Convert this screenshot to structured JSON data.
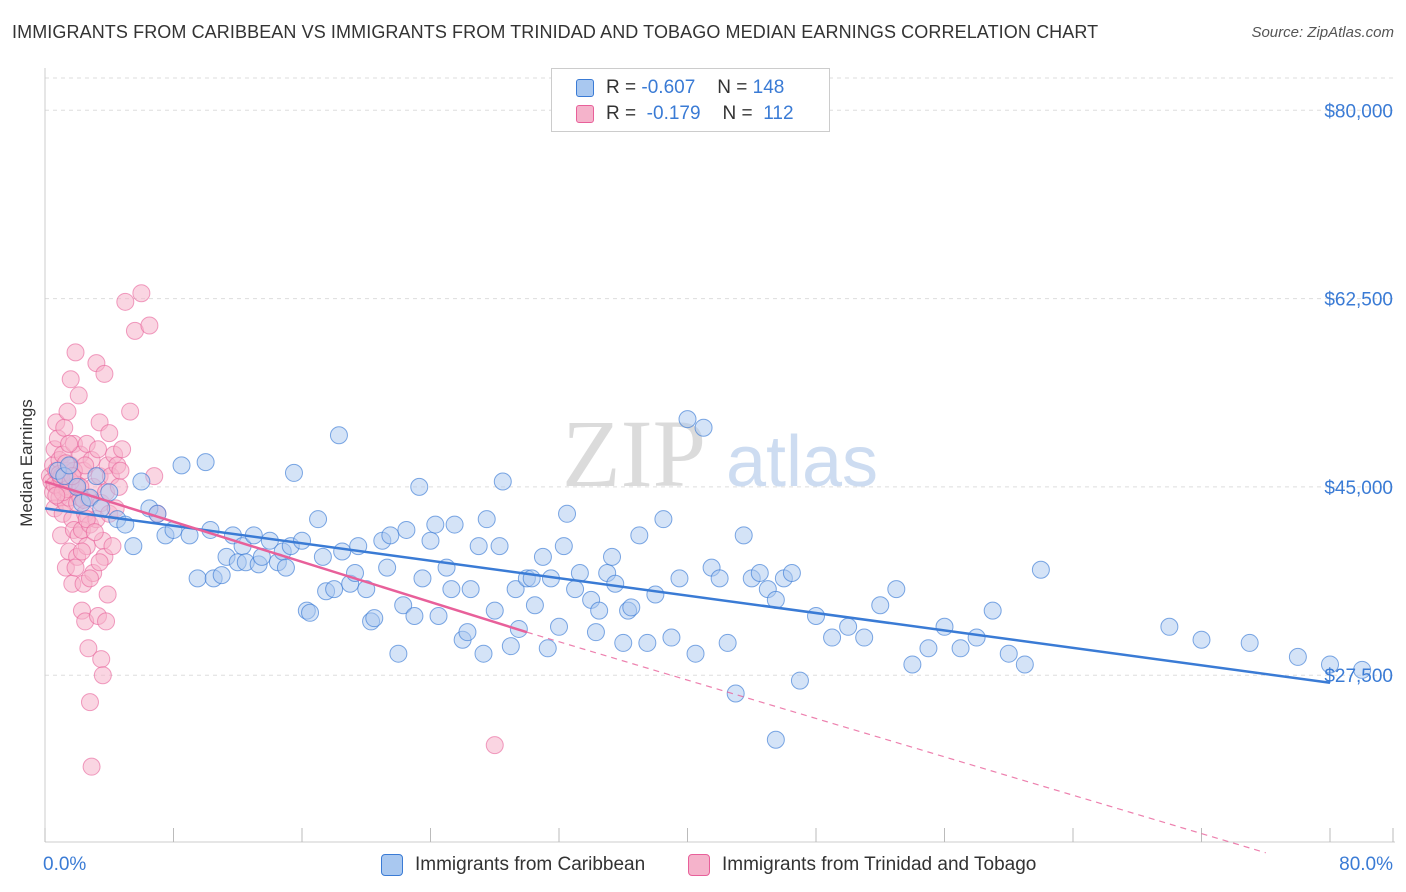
{
  "header": {
    "title": "IMMIGRANTS FROM CARIBBEAN VS IMMIGRANTS FROM TRINIDAD AND TOBAGO MEDIAN EARNINGS CORRELATION CHART",
    "source": "Source: ZipAtlas.com"
  },
  "watermark": {
    "zip": "ZIP",
    "atlas": "atlas"
  },
  "legend": {
    "rows": [
      {
        "r_label": "R =",
        "r_value": "-0.607",
        "n_label": "N =",
        "n_value": "148"
      },
      {
        "r_label": "R =",
        "r_value": "-0.179",
        "n_label": "N =",
        "n_value": "112"
      }
    ]
  },
  "bottom_legend": {
    "series1": "Immigrants from Caribbean",
    "series2": "Immigrants from Trinidad and Tobago"
  },
  "colors": {
    "blue": "#3a7bd5",
    "blue_fill": "#a9c8f0",
    "pink": "#e8609a",
    "pink_fill": "#f5b3cb",
    "grid": "#dddddd"
  },
  "chart_data": {
    "type": "scatter",
    "ylabel": "Median Earnings",
    "xlim": [
      0,
      80
    ],
    "ylim": [
      12000,
      83000
    ],
    "x_tick_labels": [
      "0.0%",
      "80.0%"
    ],
    "y_ticks": [
      {
        "value": 80000,
        "label": "$80,000"
      },
      {
        "value": 62500,
        "label": "$62,500"
      },
      {
        "value": 45000,
        "label": "$45,000"
      },
      {
        "value": 27500,
        "label": "$27,500"
      }
    ],
    "series": [
      {
        "name": "Immigrants from Caribbean",
        "color": "#3a7bd5",
        "trend": {
          "x": [
            0,
            80
          ],
          "y": [
            43000,
            26800
          ],
          "style": "solid"
        },
        "points": [
          [
            0.8,
            46.5
          ],
          [
            1.2,
            46
          ],
          [
            1.5,
            47
          ],
          [
            2,
            45
          ],
          [
            2.3,
            43.5
          ],
          [
            2.8,
            44
          ],
          [
            3.2,
            46
          ],
          [
            3.5,
            43
          ],
          [
            4,
            44.5
          ],
          [
            4.5,
            42
          ],
          [
            5,
            41.5
          ],
          [
            5.5,
            39.5
          ],
          [
            6,
            45.5
          ],
          [
            6.5,
            43
          ],
          [
            7,
            42.5
          ],
          [
            7.5,
            40.5
          ],
          [
            8,
            41
          ],
          [
            8.5,
            47
          ],
          [
            9,
            40.5
          ],
          [
            9.5,
            36.5
          ],
          [
            10,
            47.3
          ],
          [
            10.3,
            41
          ],
          [
            10.5,
            36.5
          ],
          [
            11,
            36.8
          ],
          [
            11.3,
            38.5
          ],
          [
            11.7,
            40.5
          ],
          [
            12,
            38
          ],
          [
            12.3,
            39.5
          ],
          [
            12.5,
            38
          ],
          [
            13,
            40.5
          ],
          [
            13.3,
            37.8
          ],
          [
            13.5,
            38.5
          ],
          [
            14,
            40
          ],
          [
            14.5,
            38
          ],
          [
            14.8,
            39
          ],
          [
            15,
            37.5
          ],
          [
            15.3,
            39.5
          ],
          [
            15.5,
            46.3
          ],
          [
            16,
            40
          ],
          [
            16.3,
            33.5
          ],
          [
            16.5,
            33.3
          ],
          [
            17,
            42
          ],
          [
            17.3,
            38.5
          ],
          [
            17.5,
            35.3
          ],
          [
            18,
            35.5
          ],
          [
            18.3,
            49.8
          ],
          [
            18.5,
            39
          ],
          [
            19,
            36
          ],
          [
            19.3,
            37
          ],
          [
            19.5,
            39.5
          ],
          [
            20,
            35.5
          ],
          [
            20.3,
            32.5
          ],
          [
            20.5,
            32.8
          ],
          [
            21,
            40
          ],
          [
            21.3,
            37.5
          ],
          [
            21.5,
            40.5
          ],
          [
            22,
            29.5
          ],
          [
            22.3,
            34
          ],
          [
            22.5,
            41
          ],
          [
            23,
            33
          ],
          [
            23.3,
            45
          ],
          [
            23.5,
            36.5
          ],
          [
            24,
            40
          ],
          [
            24.3,
            41.5
          ],
          [
            24.5,
            33
          ],
          [
            25,
            37.5
          ],
          [
            25.3,
            35.5
          ],
          [
            25.5,
            41.5
          ],
          [
            26,
            30.8
          ],
          [
            26.3,
            31.5
          ],
          [
            26.5,
            35.5
          ],
          [
            27,
            39.5
          ],
          [
            27.3,
            29.5
          ],
          [
            27.5,
            42
          ],
          [
            28,
            33.5
          ],
          [
            28.3,
            39.5
          ],
          [
            28.5,
            45.5
          ],
          [
            29,
            30.2
          ],
          [
            29.3,
            35.5
          ],
          [
            29.5,
            31.8
          ],
          [
            30,
            36.5
          ],
          [
            30.3,
            36.5
          ],
          [
            30.5,
            34
          ],
          [
            31,
            38.5
          ],
          [
            31.3,
            30
          ],
          [
            31.5,
            36.5
          ],
          [
            32,
            32
          ],
          [
            32.3,
            39.5
          ],
          [
            32.5,
            42.5
          ],
          [
            33,
            35.5
          ],
          [
            33.3,
            37
          ],
          [
            34,
            34.5
          ],
          [
            34.3,
            31.5
          ],
          [
            34.5,
            33.5
          ],
          [
            35,
            37
          ],
          [
            35.3,
            38.5
          ],
          [
            35.5,
            36
          ],
          [
            36,
            30.5
          ],
          [
            36.3,
            33.5
          ],
          [
            36.5,
            33.8
          ],
          [
            37,
            40.5
          ],
          [
            37.5,
            30.5
          ],
          [
            38,
            35
          ],
          [
            38.5,
            42
          ],
          [
            39,
            31
          ],
          [
            39.5,
            36.5
          ],
          [
            40,
            51.3
          ],
          [
            40.5,
            29.5
          ],
          [
            41,
            50.5
          ],
          [
            41.5,
            37.5
          ],
          [
            42,
            36.5
          ],
          [
            42.5,
            30.5
          ],
          [
            43,
            25.8
          ],
          [
            43.5,
            40.5
          ],
          [
            44,
            36.5
          ],
          [
            44.5,
            37
          ],
          [
            45,
            35.5
          ],
          [
            45.5,
            34.5
          ],
          [
            46,
            36.5
          ],
          [
            46.5,
            37
          ],
          [
            47,
            27
          ],
          [
            48,
            33
          ],
          [
            49,
            31
          ],
          [
            50,
            32
          ],
          [
            51,
            31
          ],
          [
            52,
            34
          ],
          [
            53,
            35.5
          ],
          [
            54,
            28.5
          ],
          [
            55,
            30
          ],
          [
            56,
            32
          ],
          [
            57,
            30
          ],
          [
            58,
            31
          ],
          [
            59,
            33.5
          ],
          [
            60,
            29.5
          ],
          [
            61,
            28.5
          ],
          [
            62,
            37.3
          ],
          [
            45.5,
            21.5
          ],
          [
            70,
            32
          ],
          [
            72,
            30.8
          ],
          [
            75,
            30.5
          ],
          [
            78,
            29.2
          ],
          [
            80,
            28.5
          ],
          [
            82,
            28
          ]
        ]
      },
      {
        "name": "Immigrants from Trinidad and Tobago",
        "color": "#e8609a",
        "trend": {
          "x": [
            0,
            30
          ],
          "y": [
            45500,
            31500
          ],
          "style": "solid"
        },
        "trend_extension": {
          "x": [
            30,
            76
          ],
          "y": [
            31500,
            11000
          ],
          "style": "dashed"
        },
        "points": [
          [
            0.3,
            46
          ],
          [
            0.4,
            45.5
          ],
          [
            0.5,
            47
          ],
          [
            0.5,
            44.5
          ],
          [
            0.6,
            48.5
          ],
          [
            0.6,
            43
          ],
          [
            0.7,
            46.5
          ],
          [
            0.7,
            51
          ],
          [
            0.8,
            45
          ],
          [
            0.8,
            49.5
          ],
          [
            0.9,
            44
          ],
          [
            0.9,
            47.5
          ],
          [
            1,
            46
          ],
          [
            1,
            40.5
          ],
          [
            1.1,
            48
          ],
          [
            1.1,
            42.5
          ],
          [
            1.2,
            45
          ],
          [
            1.2,
            50.5
          ],
          [
            1.3,
            43.5
          ],
          [
            1.3,
            37.5
          ],
          [
            1.4,
            46.5
          ],
          [
            1.4,
            52
          ],
          [
            1.5,
            44
          ],
          [
            1.5,
            39
          ],
          [
            1.6,
            47
          ],
          [
            1.6,
            55
          ],
          [
            1.7,
            42
          ],
          [
            1.7,
            36
          ],
          [
            1.8,
            49
          ],
          [
            1.8,
            41
          ],
          [
            1.9,
            45
          ],
          [
            1.9,
            57.5
          ],
          [
            2,
            43.5
          ],
          [
            2,
            38.5
          ],
          [
            2.1,
            40.5
          ],
          [
            2.1,
            53.5
          ],
          [
            2.2,
            48
          ],
          [
            2.2,
            44
          ],
          [
            2.3,
            41
          ],
          [
            2.3,
            33.5
          ],
          [
            2.4,
            46.5
          ],
          [
            2.4,
            36
          ],
          [
            2.5,
            42.5
          ],
          [
            2.5,
            32.5
          ],
          [
            2.6,
            39.5
          ],
          [
            2.6,
            49
          ],
          [
            2.7,
            44
          ],
          [
            2.7,
            30
          ],
          [
            2.8,
            41.5
          ],
          [
            2.8,
            25
          ],
          [
            2.9,
            47.5
          ],
          [
            2.9,
            19
          ],
          [
            3,
            45
          ],
          [
            3,
            37
          ],
          [
            3.2,
            42
          ],
          [
            3.2,
            56.5
          ],
          [
            3.3,
            48.5
          ],
          [
            3.3,
            33
          ],
          [
            3.4,
            46
          ],
          [
            3.4,
            51
          ],
          [
            3.5,
            43.5
          ],
          [
            3.5,
            29
          ],
          [
            3.6,
            40
          ],
          [
            3.6,
            27.5
          ],
          [
            3.7,
            38.5
          ],
          [
            3.7,
            55.5
          ],
          [
            3.8,
            44.5
          ],
          [
            3.8,
            32.5
          ],
          [
            3.9,
            47
          ],
          [
            3.9,
            35
          ],
          [
            4,
            42.5
          ],
          [
            4,
            50
          ],
          [
            4.1,
            46
          ],
          [
            4.2,
            39.5
          ],
          [
            4.3,
            48
          ],
          [
            4.4,
            43
          ],
          [
            4.5,
            47
          ],
          [
            4.6,
            45
          ],
          [
            4.7,
            46.5
          ],
          [
            4.8,
            48.5
          ],
          [
            5,
            62.2
          ],
          [
            5.3,
            52
          ],
          [
            5.6,
            59.5
          ],
          [
            6,
            63
          ],
          [
            6.5,
            60
          ],
          [
            6.8,
            46
          ],
          [
            7,
            42.5
          ],
          [
            1.5,
            49
          ],
          [
            1.8,
            46.5
          ],
          [
            2,
            45.2
          ],
          [
            2.5,
            47
          ],
          [
            0.6,
            45.2
          ],
          [
            1,
            45.8
          ],
          [
            1.4,
            44.8
          ],
          [
            0.9,
            46.2
          ],
          [
            1.6,
            45.5
          ],
          [
            2.2,
            45
          ],
          [
            1.1,
            44.5
          ],
          [
            1.3,
            47.2
          ],
          [
            1.7,
            46
          ],
          [
            0.7,
            44.2
          ],
          [
            2.4,
            43.8
          ],
          [
            2.6,
            42
          ],
          [
            3.1,
            40.8
          ],
          [
            3.4,
            38
          ],
          [
            1.9,
            37.5
          ],
          [
            2.3,
            39
          ],
          [
            2.8,
            36.5
          ],
          [
            28,
            21
          ]
        ]
      }
    ]
  }
}
